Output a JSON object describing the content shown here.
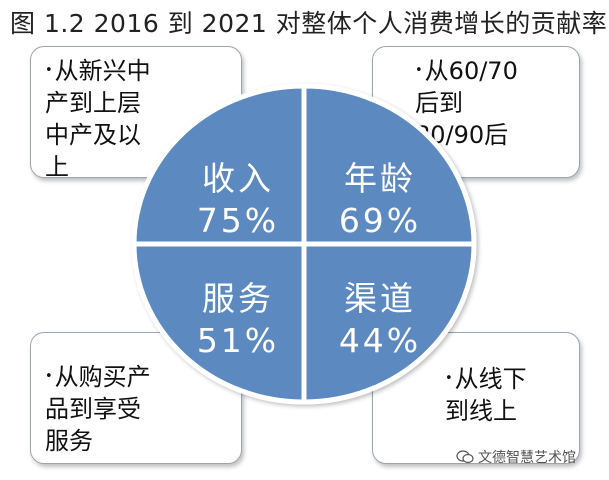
{
  "title": "图 1.2    2016 到 2021 对整体个人消费增长的贡献率",
  "segments": {
    "income": {
      "name": "收入",
      "value": "75%"
    },
    "age": {
      "name": "年龄",
      "value": "69%"
    },
    "service": {
      "name": "服务",
      "value": "51%"
    },
    "channel": {
      "name": "渠道",
      "value": "44%"
    }
  },
  "callouts": {
    "income": {
      "lines": [
        "从新兴中",
        "产到上层",
        "中产及以",
        "上"
      ]
    },
    "age": {
      "lines": [
        "从60/70",
        "后到",
        "80/90后"
      ]
    },
    "service": {
      "lines": [
        "从购买产",
        "品到享受",
        "服务"
      ]
    },
    "channel": {
      "lines": [
        "从线下",
        "到线上"
      ]
    }
  },
  "bullet_glyph": "•",
  "watermark": "文德智慧艺术馆",
  "colors": {
    "segment_fill": "#5b8ac0",
    "segment_border": "#ffffff",
    "callout_border": "#9aa6b2"
  }
}
